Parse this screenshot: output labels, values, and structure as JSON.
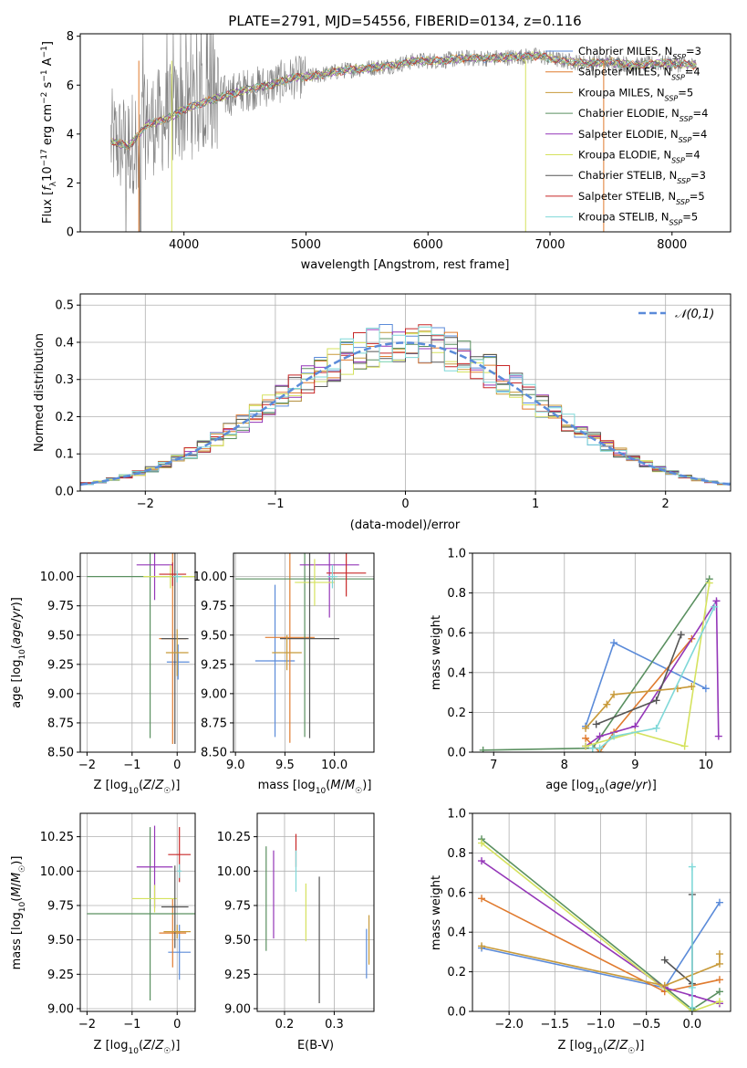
{
  "colors": {
    "series": [
      "#5b8bd9",
      "#e07b2f",
      "#c89a3a",
      "#5a9060",
      "#9436b8",
      "#d5e25e",
      "#555555",
      "#c82828",
      "#7fd8d8"
    ],
    "data": "#808080",
    "normal": "#5b8bd9",
    "grid": "#b0b0b0"
  },
  "chart_data": [
    {
      "id": "spectrum",
      "type": "line",
      "title": "PLATE=2791, MJD=54556, FIBERID=0134, z=0.116",
      "xlabel": "wavelength [Angstrom, rest frame]",
      "ylabel": "Flux [f_λ 10^-17 erg cm^-2 s^-1 A^-1]",
      "xlim": [
        3150,
        8480
      ],
      "ylim": [
        0,
        8.1
      ],
      "xticks": [
        4000,
        5000,
        6000,
        7000,
        8000
      ],
      "yticks": [
        0,
        2,
        4,
        6,
        8
      ],
      "grid": false,
      "legend_position": "top-right",
      "legend": [
        "Chabrier MILES, N_SSP=3",
        "Salpeter MILES, N_SSP=4",
        "Kroupa MILES, N_SSP=5",
        "Chabrier ELODIE, N_SSP=4",
        "Salpeter ELODIE, N_SSP=4",
        "Kroupa ELODIE, N_SSP=4",
        "Chabrier STELIB, N_SSP=3",
        "Salpeter STELIB, N_SSP=5",
        "Kroupa STELIB, N_SSP=5"
      ],
      "continuum_x": [
        3400,
        3550,
        3700,
        3850,
        4000,
        4150,
        4300,
        4500,
        4700,
        4900,
        5100,
        5300,
        5500,
        5700,
        5900,
        6100,
        6300,
        6500,
        6700,
        6900,
        7100,
        7300,
        7500,
        7700,
        7900,
        8100,
        8200
      ],
      "continuum_y": [
        3.7,
        3.5,
        4.4,
        4.6,
        5.0,
        5.3,
        5.5,
        5.8,
        6.0,
        6.3,
        6.4,
        6.6,
        6.7,
        6.8,
        7.0,
        7.0,
        7.1,
        7.1,
        7.15,
        7.2,
        7.0,
        6.9,
        6.95,
        6.8,
        6.9,
        6.85,
        6.8
      ]
    },
    {
      "id": "residuals",
      "type": "bar",
      "xlabel": "(data-model)/error",
      "ylabel": "Normed distribution",
      "xlim": [
        -2.5,
        2.5
      ],
      "ylim": [
        0,
        0.53
      ],
      "xticks": [
        -2,
        -1,
        0,
        1,
        2
      ],
      "yticks": [
        0.0,
        0.1,
        0.2,
        0.3,
        0.4,
        0.5
      ],
      "grid": true,
      "legend": [
        "𝒩(0,1)"
      ],
      "legend_position": "top-right",
      "bin_width": 0.1
    },
    {
      "id": "age-z",
      "type": "scatter",
      "xlabel": "Z [log10(Z/Z☉)]",
      "ylabel": "age  [log10(age/yr)]",
      "xlim": [
        -2.15,
        0.4
      ],
      "ylim": [
        8.5,
        10.2
      ],
      "xticks": [
        -2,
        -1,
        0
      ],
      "yticks": [
        8.5,
        8.75,
        9.0,
        9.25,
        9.5,
        9.75,
        10.0
      ],
      "grid": true,
      "points": [
        {
          "s": 0,
          "x": 0.02,
          "y": 9.27,
          "xerr": 0.25,
          "yerr": 0.15
        },
        {
          "s": 1,
          "x": -0.1,
          "y": 9.47,
          "xerr": 0.3,
          "yerr": 0.9
        },
        {
          "s": 3,
          "x": -0.6,
          "y": 10.0,
          "xerr": 1.4,
          "yerr": 1.38
        },
        {
          "s": 4,
          "x": -0.5,
          "y": 10.1,
          "xerr": 0.4,
          "yerr": 0.3
        },
        {
          "s": 5,
          "x": -0.15,
          "y": 10.0,
          "xerr": 0.6,
          "yerr": 0.1
        },
        {
          "s": 6,
          "x": -0.05,
          "y": 9.47,
          "xerr": 0.3,
          "yerr": 0.9
        },
        {
          "s": 7,
          "x": -0.1,
          "y": 10.02,
          "xerr": 0.3,
          "yerr": 0.1
        },
        {
          "s": 8,
          "x": 0.0,
          "y": 10.0,
          "xerr": 0.1,
          "yerr": 0.05
        },
        {
          "s": 2,
          "x": 0.0,
          "y": 9.35,
          "xerr": 0.25,
          "yerr": 0.2
        }
      ]
    },
    {
      "id": "age-mass",
      "type": "scatter",
      "xlabel": "mass [log10(M/M☉)]",
      "ylabel": "",
      "xlim": [
        8.98,
        10.4
      ],
      "ylim": [
        8.5,
        10.2
      ],
      "xticks": [
        9.0,
        9.5,
        10.0
      ],
      "yticks": [
        8.5,
        8.75,
        9.0,
        9.25,
        9.5,
        9.75,
        10.0
      ],
      "grid": true,
      "points": [
        {
          "s": 0,
          "x": 9.4,
          "y": 9.28,
          "xerr": 0.2,
          "yerr": 0.65
        },
        {
          "s": 1,
          "x": 9.55,
          "y": 9.48,
          "xerr": 0.25,
          "yerr": 0.9
        },
        {
          "s": 3,
          "x": 9.7,
          "y": 9.98,
          "xerr": 0.7,
          "yerr": 1.35
        },
        {
          "s": 4,
          "x": 9.95,
          "y": 10.1,
          "xerr": 0.3,
          "yerr": 0.45
        },
        {
          "s": 5,
          "x": 9.8,
          "y": 9.95,
          "xerr": 0.2,
          "yerr": 0.2
        },
        {
          "s": 6,
          "x": 9.75,
          "y": 9.47,
          "xerr": 0.3,
          "yerr": 0.85
        },
        {
          "s": 7,
          "x": 10.12,
          "y": 10.03,
          "xerr": 0.2,
          "yerr": 0.2
        },
        {
          "s": 8,
          "x": 9.98,
          "y": 10.0,
          "xerr": 0.05,
          "yerr": 0.1
        },
        {
          "s": 2,
          "x": 9.52,
          "y": 9.35,
          "xerr": 0.15,
          "yerr": 0.15
        }
      ]
    },
    {
      "id": "massweight-age",
      "type": "line",
      "xlabel": "age  [log10(age/yr)]",
      "ylabel": "mass weight",
      "xlim": [
        6.7,
        10.35
      ],
      "ylim": [
        0,
        1.0
      ],
      "xticks": [
        7,
        8,
        9,
        10
      ],
      "yticks": [
        0.0,
        0.2,
        0.4,
        0.6,
        0.8,
        1.0
      ],
      "grid": true,
      "series": [
        {
          "s": 0,
          "x": [
            8.3,
            8.7,
            10.0
          ],
          "y": [
            0.13,
            0.55,
            0.32
          ]
        },
        {
          "s": 1,
          "x": [
            8.3,
            8.5,
            8.7,
            9.8
          ],
          "y": [
            0.07,
            0.0,
            0.1,
            0.57
          ]
        },
        {
          "s": 3,
          "x": [
            6.85,
            8.4,
            10.05
          ],
          "y": [
            0.01,
            0.02,
            0.87
          ]
        },
        {
          "s": 4,
          "x": [
            8.3,
            8.5,
            9.0,
            10.15,
            10.18
          ],
          "y": [
            0.03,
            0.08,
            0.13,
            0.76,
            0.08
          ]
        },
        {
          "s": 5,
          "x": [
            8.3,
            9.0,
            9.7,
            10.05
          ],
          "y": [
            0.03,
            0.1,
            0.03,
            0.85
          ]
        },
        {
          "s": 6,
          "x": [
            8.45,
            9.3,
            9.65
          ],
          "y": [
            0.14,
            0.26,
            0.59
          ]
        },
        {
          "s": 2,
          "x": [
            8.3,
            8.6,
            8.7,
            9.6,
            9.8
          ],
          "y": [
            0.12,
            0.24,
            0.29,
            0.32,
            0.33
          ]
        },
        {
          "s": 8,
          "x": [
            8.4,
            8.5,
            8.7,
            9.3,
            10.12
          ],
          "y": [
            0.02,
            0.02,
            0.08,
            0.12,
            0.73
          ]
        }
      ]
    },
    {
      "id": "mass-z",
      "type": "scatter",
      "xlabel": "Z [log10(Z/Z☉)]",
      "ylabel": "mass [log10(M/M☉)]",
      "xlim": [
        -2.15,
        0.4
      ],
      "ylim": [
        8.98,
        10.42
      ],
      "xticks": [
        -2,
        -1,
        0
      ],
      "yticks": [
        9.0,
        9.25,
        9.5,
        9.75,
        10.0,
        10.25
      ],
      "grid": true,
      "points": [
        {
          "s": 0,
          "x": 0.05,
          "y": 9.41,
          "xerr": 0.25,
          "yerr": 0.2
        },
        {
          "s": 1,
          "x": -0.1,
          "y": 9.55,
          "xerr": 0.3,
          "yerr": 0.25
        },
        {
          "s": 3,
          "x": -0.6,
          "y": 9.69,
          "xerr": 1.4,
          "yerr": 0.63
        },
        {
          "s": 4,
          "x": -0.5,
          "y": 10.03,
          "xerr": 0.4,
          "yerr": 0.3
        },
        {
          "s": 5,
          "x": -0.5,
          "y": 9.8,
          "xerr": 0.5,
          "yerr": 0.1
        },
        {
          "s": 6,
          "x": -0.05,
          "y": 9.74,
          "xerr": 0.3,
          "yerr": 0.3
        },
        {
          "s": 7,
          "x": 0.05,
          "y": 10.12,
          "xerr": 0.25,
          "yerr": 0.2
        },
        {
          "s": 8,
          "x": 0.05,
          "y": 10.0,
          "xerr": 0.05,
          "yerr": 0.05
        },
        {
          "s": 2,
          "x": 0.0,
          "y": 9.56,
          "xerr": 0.3,
          "yerr": 0.05
        }
      ]
    },
    {
      "id": "mass-ebv",
      "type": "scatter",
      "xlabel": "E(B-V)",
      "ylabel": "",
      "xlim": [
        0.145,
        0.38
      ],
      "ylim": [
        8.98,
        10.42
      ],
      "xticks": [
        0.2,
        0.3
      ],
      "yticks": [
        9.0,
        9.25,
        9.5,
        9.75,
        10.0,
        10.25
      ],
      "grid": true,
      "points": [
        {
          "s": 3,
          "x": 0.163,
          "y": 9.8,
          "xerr": 0,
          "yerr": 0.38
        },
        {
          "s": 4,
          "x": 0.178,
          "y": 9.83,
          "xerr": 0,
          "yerr": 0.32
        },
        {
          "s": 7,
          "x": 0.223,
          "y": 10.15,
          "xerr": 0,
          "yerr": 0.12
        },
        {
          "s": 8,
          "x": 0.223,
          "y": 10.0,
          "xerr": 0,
          "yerr": 0.15
        },
        {
          "s": 5,
          "x": 0.243,
          "y": 9.7,
          "xerr": 0,
          "yerr": 0.21
        },
        {
          "s": 6,
          "x": 0.27,
          "y": 9.5,
          "xerr": 0,
          "yerr": 0.46
        },
        {
          "s": 0,
          "x": 0.365,
          "y": 9.4,
          "xerr": 0,
          "yerr": 0.18
        },
        {
          "s": 2,
          "x": 0.37,
          "y": 9.5,
          "xerr": 0,
          "yerr": 0.18
        }
      ]
    },
    {
      "id": "massweight-z",
      "type": "line",
      "xlabel": "Z [log10(Z/Z☉)]",
      "ylabel": "mass weight",
      "xlim": [
        -2.4,
        0.42
      ],
      "ylim": [
        0,
        1.0
      ],
      "xticks": [
        -2.0,
        -1.5,
        -1.0,
        -0.5,
        0.0
      ],
      "yticks": [
        0.0,
        0.2,
        0.4,
        0.6,
        0.8,
        1.0
      ],
      "grid": true,
      "series": [
        {
          "s": 0,
          "x": [
            -2.3,
            -0.3,
            0.3
          ],
          "y": [
            0.32,
            0.12,
            0.55
          ]
        },
        {
          "s": 1,
          "x": [
            -2.3,
            -0.3,
            0.3
          ],
          "y": [
            0.57,
            0.1,
            0.16
          ]
        },
        {
          "s": 3,
          "x": [
            -2.3,
            0.0,
            0.3
          ],
          "y": [
            0.87,
            0.01,
            0.1
          ]
        },
        {
          "s": 4,
          "x": [
            -2.3,
            -0.3,
            0.0,
            0.3
          ],
          "y": [
            0.76,
            0.12,
            0.08,
            0.04
          ]
        },
        {
          "s": 5,
          "x": [
            -2.3,
            0.0,
            0.3
          ],
          "y": [
            0.85,
            0.0,
            0.05
          ]
        },
        {
          "s": 6,
          "x": [
            -0.3,
            0.0,
            0.0
          ],
          "y": [
            0.26,
            0.14,
            0.59
          ]
        },
        {
          "s": 2,
          "x": [
            -2.3,
            -0.3,
            0.3,
            0.3
          ],
          "y": [
            0.33,
            0.13,
            0.24,
            0.29
          ]
        },
        {
          "s": 8,
          "x": [
            0.0,
            0.0,
            0.0
          ],
          "y": [
            0.02,
            0.12,
            0.73
          ]
        }
      ]
    }
  ]
}
